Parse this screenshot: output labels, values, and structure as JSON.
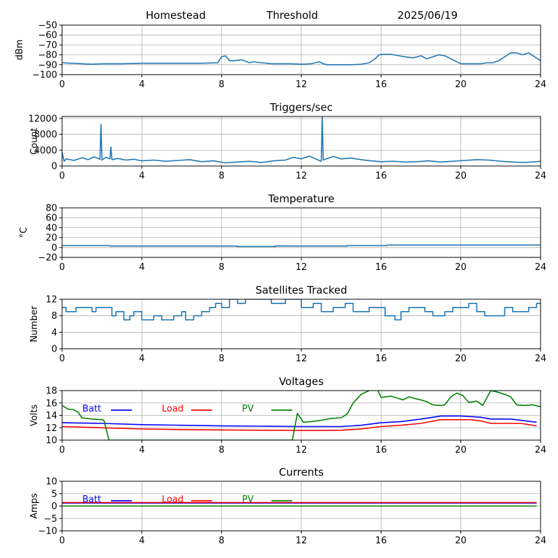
{
  "header": {
    "site": "Homestead",
    "label": "Threshold",
    "date": "2025/06/19"
  },
  "colors": {
    "series": "#1f77b4",
    "batt": "#0000ff",
    "load": "#ff0000",
    "pv": "#008000",
    "grid": "#b0b0b0"
  },
  "chart_data": [
    {
      "type": "line",
      "title": "",
      "ylabel": "dBm",
      "xlim": [
        0,
        24
      ],
      "ylim": [
        -100,
        -50
      ],
      "xticks": [
        0,
        4,
        8,
        12,
        16,
        20,
        24
      ],
      "yticks": [
        -100,
        -90,
        -80,
        -70,
        -60,
        -50
      ],
      "series": [
        {
          "x": [
            0,
            0.5,
            1,
            1.5,
            2,
            3,
            4,
            5,
            6,
            7,
            7.8,
            8.0,
            8.2,
            8.4,
            8.6,
            9.0,
            9.4,
            9.6,
            10.0,
            10.5,
            11,
            11.5,
            12,
            12.5,
            12.9,
            13.1,
            13.3,
            13.8,
            14.5,
            15,
            15.4,
            15.7,
            15.9,
            16.1,
            16.5,
            16.9,
            17.2,
            17.6,
            18.0,
            18.3,
            18.6,
            18.9,
            19.2,
            19.5,
            20,
            20.5,
            21,
            21.3,
            21.6,
            21.9,
            22.2,
            22.5,
            22.8,
            23.1,
            23.4,
            23.7,
            24
          ],
          "y": [
            -88,
            -88.5,
            -89,
            -89.5,
            -89,
            -89,
            -88.5,
            -88.5,
            -88.5,
            -88.5,
            -88,
            -82,
            -81,
            -86,
            -86,
            -85,
            -88,
            -87,
            -88,
            -89,
            -89,
            -89,
            -89.5,
            -89,
            -87,
            -89,
            -90,
            -90,
            -90,
            -89.5,
            -88,
            -84,
            -80,
            -79.5,
            -79.5,
            -81,
            -82,
            -83,
            -81,
            -84,
            -82,
            -80,
            -81,
            -84,
            -89,
            -89,
            -89,
            -88,
            -88,
            -86,
            -82,
            -78,
            -78,
            -80,
            -78,
            -82,
            -86
          ]
        }
      ]
    },
    {
      "type": "line",
      "title": "Triggers/sec",
      "ylabel": "Count",
      "xlim": [
        0,
        24
      ],
      "ylim": [
        0,
        12500
      ],
      "xticks": [
        0,
        4,
        8,
        12,
        16,
        20,
        24
      ],
      "yticks": [
        0,
        4000,
        8000,
        12000
      ],
      "series": [
        {
          "x": [
            0,
            0.1,
            0.2,
            0.6,
            1.0,
            1.3,
            1.6,
            1.9,
            1.95,
            2.0,
            2.2,
            2.4,
            2.45,
            2.5,
            2.8,
            3.2,
            3.6,
            4.0,
            4.6,
            5.2,
            5.8,
            6.4,
            7.0,
            7.6,
            8.2,
            8.8,
            9.4,
            10.0,
            10.6,
            11.2,
            11.6,
            12.0,
            12.4,
            12.8,
            13.0,
            13.05,
            13.1,
            13.3,
            13.6,
            14.0,
            14.5,
            15.0,
            15.5,
            16.0,
            16.6,
            17.2,
            17.8,
            18.4,
            19.0,
            19.6,
            20.2,
            20.8,
            21.4,
            22.0,
            22.6,
            23.2,
            23.8,
            24
          ],
          "y": [
            3500,
            1200,
            1800,
            1400,
            2100,
            1600,
            2300,
            1700,
            10500,
            1500,
            2200,
            1800,
            4800,
            1600,
            1900,
            1500,
            1700,
            1300,
            1500,
            1200,
            1400,
            1600,
            1100,
            1300,
            800,
            1000,
            1200,
            900,
            1300,
            1500,
            2200,
            1800,
            2500,
            1600,
            1200,
            12500,
            1500,
            1900,
            2400,
            1800,
            2000,
            1600,
            1300,
            1100,
            1200,
            1000,
            1100,
            1300,
            1000,
            1200,
            1400,
            1600,
            1500,
            1200,
            1000,
            900,
            1100,
            1200
          ]
        }
      ]
    },
    {
      "type": "line",
      "title": "Temperature",
      "ylabel": "°C",
      "xlim": [
        0,
        24
      ],
      "ylim": [
        -20,
        80
      ],
      "xticks": [
        0,
        4,
        8,
        12,
        16,
        20,
        24
      ],
      "yticks": [
        -20,
        0,
        20,
        40,
        60,
        80
      ],
      "series": [
        {
          "x": [
            0,
            2.4,
            2.4,
            8.8,
            8.8,
            10.7,
            10.7,
            14.3,
            14.3,
            16.3,
            16.3,
            24
          ],
          "y": [
            4,
            4,
            3,
            3,
            2,
            2,
            3,
            3,
            4,
            4,
            5,
            5
          ]
        }
      ]
    },
    {
      "type": "line",
      "title": "Satellites Tracked",
      "ylabel": "Number",
      "xlim": [
        0,
        24
      ],
      "ylim": [
        0,
        12
      ],
      "xticks": [
        0,
        4,
        8,
        12,
        16,
        20,
        24
      ],
      "yticks": [
        0,
        4,
        8,
        12
      ],
      "series": [
        {
          "x": [
            0,
            0.2,
            0.2,
            0.7,
            0.7,
            1.5,
            1.5,
            1.7,
            1.7,
            2.5,
            2.5,
            2.7,
            2.7,
            3.1,
            3.1,
            3.4,
            3.4,
            3.6,
            3.6,
            4.0,
            4.0,
            4.6,
            4.6,
            5.0,
            5.0,
            5.6,
            5.6,
            6.0,
            6.0,
            6.2,
            6.2,
            6.6,
            6.6,
            7.0,
            7.0,
            7.4,
            7.4,
            7.7,
            7.7,
            8.0,
            8.0,
            8.4,
            8.4,
            8.8,
            8.8,
            9.2,
            9.2,
            10.5,
            10.5,
            11.2,
            11.2,
            12.0,
            12.0,
            12.6,
            12.6,
            13.0,
            13.0,
            13.6,
            13.6,
            14.2,
            14.2,
            14.6,
            14.6,
            15.4,
            15.4,
            16.2,
            16.2,
            16.7,
            16.7,
            17.0,
            17.0,
            17.4,
            17.4,
            18.2,
            18.2,
            18.6,
            18.6,
            19.2,
            19.2,
            19.6,
            19.6,
            20.4,
            20.4,
            20.8,
            20.8,
            21.2,
            21.2,
            22.2,
            22.2,
            22.6,
            22.6,
            23.4,
            23.4,
            23.8,
            23.8,
            24
          ],
          "y": [
            10,
            10,
            9,
            9,
            10,
            10,
            9,
            9,
            10,
            10,
            8,
            8,
            9,
            9,
            7,
            7,
            8,
            8,
            9,
            9,
            7,
            7,
            8,
            8,
            7,
            7,
            8,
            8,
            9,
            9,
            7,
            7,
            8,
            8,
            9,
            9,
            10,
            10,
            11,
            11,
            10,
            10,
            12,
            12,
            11,
            11,
            12,
            12,
            11,
            11,
            12,
            12,
            10,
            10,
            11,
            11,
            9,
            9,
            10,
            10,
            11,
            11,
            9,
            9,
            10,
            10,
            8,
            8,
            7,
            7,
            9,
            9,
            10,
            10,
            9,
            9,
            8,
            8,
            9,
            9,
            10,
            10,
            11,
            11,
            9,
            9,
            8,
            8,
            10,
            10,
            9,
            9,
            10,
            10,
            11,
            11
          ]
        }
      ]
    },
    {
      "type": "line",
      "title": "Voltages",
      "ylabel": "Volts",
      "xlim": [
        0,
        24
      ],
      "ylim": [
        10,
        18
      ],
      "xticks": [
        0,
        4,
        8,
        12,
        16,
        20,
        24
      ],
      "yticks": [
        10,
        12,
        14,
        16,
        18
      ],
      "legend": [
        "Batt",
        "Load",
        "PV"
      ],
      "series": [
        {
          "name": "Batt",
          "color_key": "batt",
          "x": [
            0,
            2,
            4,
            6,
            8,
            10,
            12,
            13,
            14,
            15,
            16,
            17,
            18,
            19,
            20,
            20.5,
            21,
            21.5,
            22,
            22.5,
            23,
            23.8
          ],
          "y": [
            12.8,
            12.7,
            12.5,
            12.4,
            12.3,
            12.25,
            12.2,
            12.2,
            12.2,
            12.4,
            12.8,
            13.0,
            13.4,
            13.9,
            13.9,
            13.8,
            13.7,
            13.4,
            13.4,
            13.4,
            13.2,
            12.9
          ]
        },
        {
          "name": "Load",
          "color_key": "load",
          "x": [
            0,
            2,
            4,
            6,
            8,
            10,
            12,
            13,
            14,
            15,
            16,
            17,
            18,
            19,
            20,
            20.5,
            21,
            21.5,
            22,
            22.5,
            23,
            23.8
          ],
          "y": [
            12.2,
            12.0,
            11.8,
            11.7,
            11.65,
            11.6,
            11.55,
            11.55,
            11.6,
            11.8,
            12.2,
            12.4,
            12.7,
            13.3,
            13.3,
            13.3,
            13.1,
            12.7,
            12.7,
            12.7,
            12.7,
            12.3
          ]
        },
        {
          "name": "PV",
          "color_key": "pv",
          "x": [
            0,
            0.3,
            0.6,
            0.8,
            1.0,
            1.5,
            2.0,
            2.1,
            2.35,
            11.55,
            11.8,
            12.1,
            12.5,
            13.0,
            13.5,
            14.0,
            14.3,
            14.6,
            15.0,
            15.4,
            15.8,
            16.0,
            16.5,
            16.8,
            17.1,
            17.4,
            17.7,
            18.0,
            18.3,
            18.6,
            19.0,
            19.2,
            19.5,
            19.8,
            20.1,
            20.4,
            20.8,
            21.1,
            21.5,
            21.8,
            22.2,
            22.5,
            22.8,
            23.2,
            23.6,
            24
          ],
          "y": [
            15.6,
            15.0,
            14.9,
            14.5,
            13.6,
            13.4,
            13.3,
            13.2,
            10,
            10,
            14.3,
            12.9,
            13.0,
            13.2,
            13.5,
            13.6,
            14.2,
            16.0,
            17.4,
            18.0,
            18.3,
            16.9,
            17.1,
            16.8,
            16.5,
            17.0,
            16.7,
            16.5,
            16.2,
            15.7,
            15.6,
            15.7,
            17.0,
            17.6,
            17.2,
            16.1,
            16.3,
            15.6,
            18.0,
            17.8,
            17.4,
            17.0,
            15.7,
            15.6,
            15.7,
            15.4
          ]
        }
      ]
    },
    {
      "type": "line",
      "title": "Currents",
      "ylabel": "Amps",
      "xlim": [
        0,
        24
      ],
      "ylim": [
        -10,
        10
      ],
      "xticks": [
        0,
        4,
        8,
        12,
        16,
        20,
        24
      ],
      "yticks": [
        -10,
        -5,
        0,
        5,
        10
      ],
      "legend": [
        "Batt",
        "Load",
        "PV"
      ],
      "series": [
        {
          "name": "Batt",
          "color_key": "batt",
          "x": [
            0,
            23.8
          ],
          "y": [
            1.2,
            1.2
          ]
        },
        {
          "name": "Load",
          "color_key": "load",
          "x": [
            0,
            23.8
          ],
          "y": [
            1.4,
            1.4
          ]
        },
        {
          "name": "PV",
          "color_key": "pv",
          "x": [
            0,
            23.8
          ],
          "y": [
            0,
            0
          ]
        }
      ]
    }
  ]
}
